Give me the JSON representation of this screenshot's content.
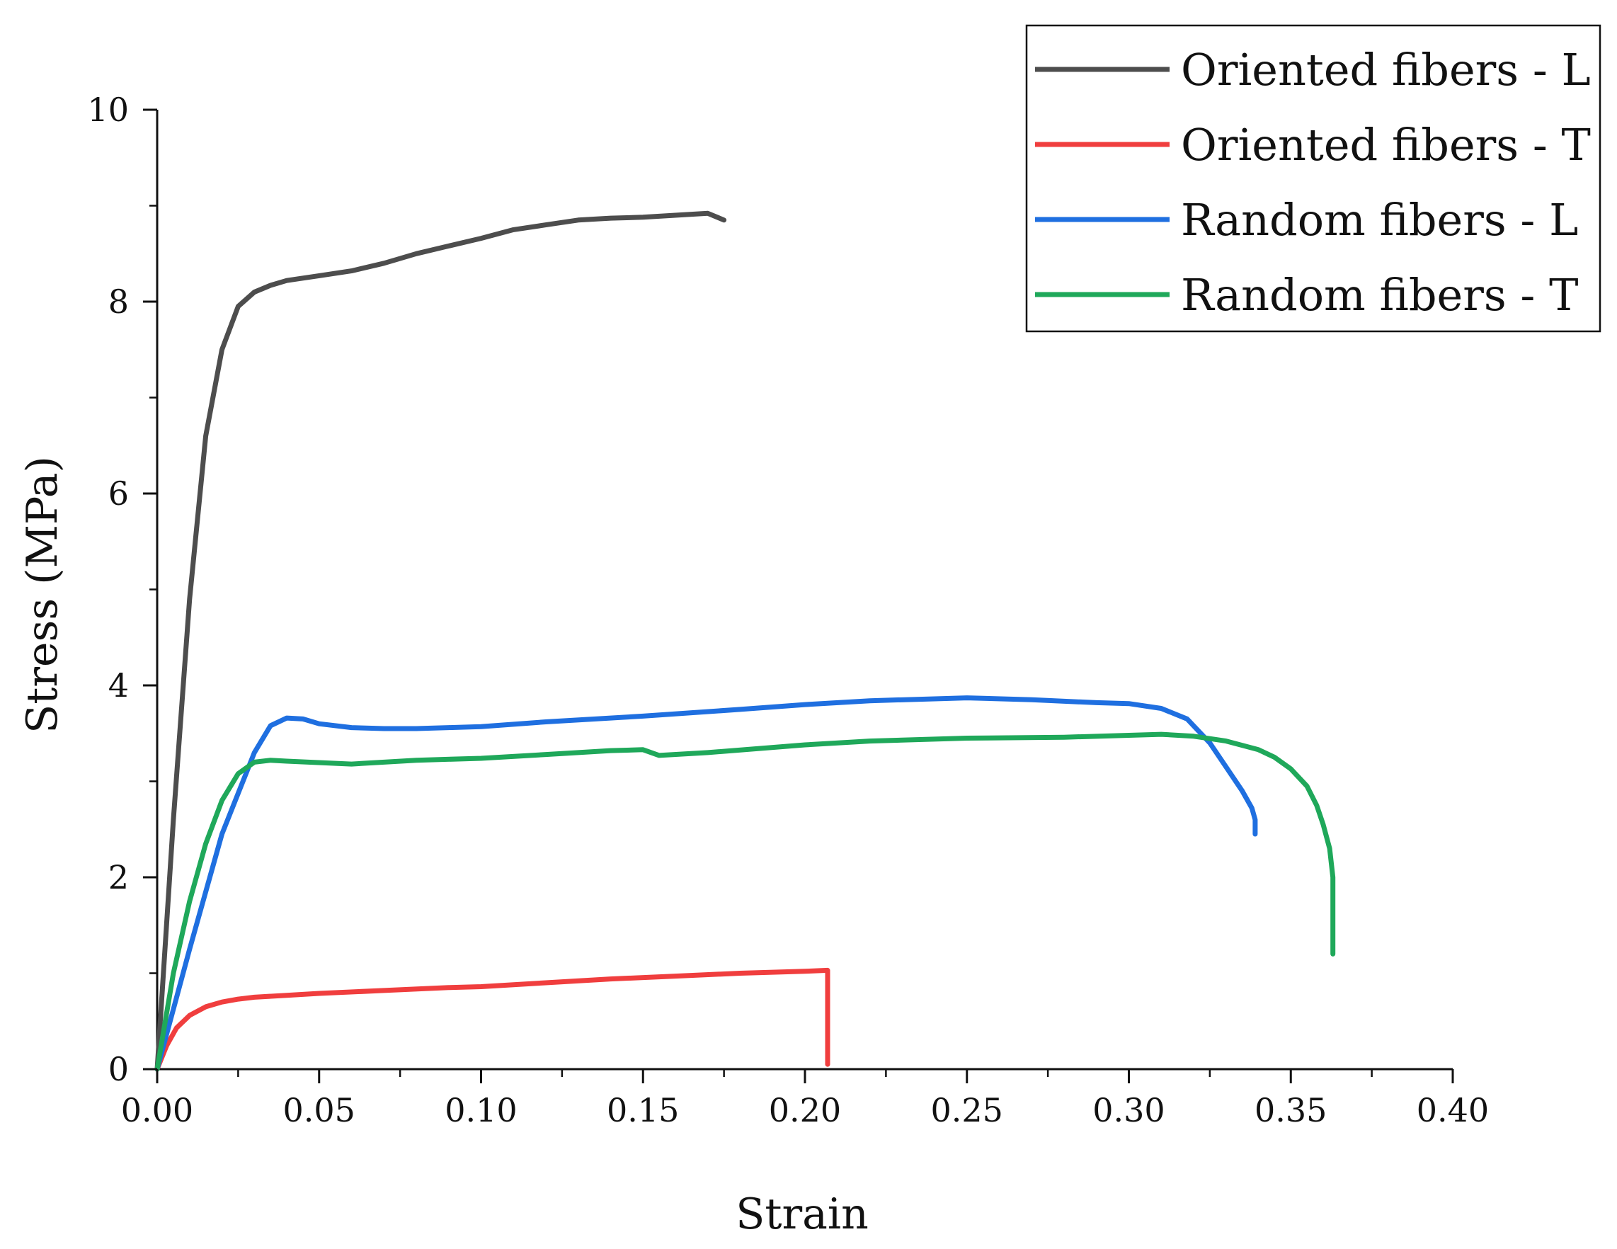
{
  "chart_data": {
    "type": "line",
    "title": "",
    "xlabel": "Strain",
    "ylabel": "Stress (MPa)",
    "xlim": [
      0,
      0.4
    ],
    "ylim": [
      0,
      10
    ],
    "xticks": [
      0.0,
      0.05,
      0.1,
      0.15,
      0.2,
      0.25,
      0.3,
      0.35,
      0.4
    ],
    "xtick_labels": [
      "0.00",
      "0.05",
      "0.10",
      "0.15",
      "0.20",
      "0.25",
      "0.30",
      "0.35",
      "0.40"
    ],
    "yticks": [
      0,
      2,
      4,
      6,
      8,
      10
    ],
    "ytick_labels": [
      "0",
      "2",
      "4",
      "6",
      "8",
      "10"
    ],
    "grid": false,
    "legend_position": "top-right",
    "series": [
      {
        "name": "Oriented fibers - L",
        "color": "#4d4d4d",
        "x": [
          0,
          0.005,
          0.01,
          0.015,
          0.02,
          0.025,
          0.03,
          0.035,
          0.04,
          0.05,
          0.06,
          0.07,
          0.08,
          0.09,
          0.1,
          0.11,
          0.12,
          0.13,
          0.14,
          0.15,
          0.16,
          0.17,
          0.175
        ],
        "y": [
          0,
          2.6,
          4.9,
          6.6,
          7.5,
          7.95,
          8.1,
          8.17,
          8.22,
          8.27,
          8.32,
          8.4,
          8.5,
          8.58,
          8.66,
          8.75,
          8.8,
          8.85,
          8.87,
          8.88,
          8.9,
          8.92,
          8.85
        ]
      },
      {
        "name": "Oriented fibers - T",
        "color": "#f03e3e",
        "x": [
          0,
          0.003,
          0.006,
          0.01,
          0.015,
          0.02,
          0.025,
          0.03,
          0.04,
          0.05,
          0.07,
          0.09,
          0.1,
          0.12,
          0.14,
          0.16,
          0.18,
          0.2,
          0.207,
          0.207,
          0.207
        ],
        "y": [
          0,
          0.25,
          0.43,
          0.56,
          0.65,
          0.7,
          0.73,
          0.75,
          0.77,
          0.79,
          0.82,
          0.85,
          0.86,
          0.9,
          0.94,
          0.97,
          1.0,
          1.02,
          1.03,
          0.5,
          0.05
        ]
      },
      {
        "name": "Random fibers - L",
        "color": "#1f6fe0",
        "x": [
          0,
          0.01,
          0.02,
          0.03,
          0.035,
          0.04,
          0.045,
          0.05,
          0.06,
          0.07,
          0.08,
          0.09,
          0.1,
          0.12,
          0.15,
          0.18,
          0.2,
          0.22,
          0.25,
          0.27,
          0.29,
          0.3,
          0.31,
          0.318,
          0.325,
          0.33,
          0.335,
          0.338,
          0.339,
          0.339
        ],
        "y": [
          0,
          1.25,
          2.45,
          3.3,
          3.58,
          3.66,
          3.65,
          3.6,
          3.56,
          3.55,
          3.55,
          3.56,
          3.57,
          3.62,
          3.68,
          3.75,
          3.8,
          3.84,
          3.87,
          3.85,
          3.82,
          3.81,
          3.76,
          3.65,
          3.4,
          3.15,
          2.9,
          2.72,
          2.6,
          2.45
        ]
      },
      {
        "name": "Random fibers - T",
        "color": "#1fa85a",
        "x": [
          0,
          0.005,
          0.01,
          0.015,
          0.02,
          0.025,
          0.03,
          0.035,
          0.04,
          0.06,
          0.08,
          0.1,
          0.12,
          0.14,
          0.15,
          0.155,
          0.17,
          0.2,
          0.22,
          0.25,
          0.28,
          0.3,
          0.31,
          0.32,
          0.33,
          0.34,
          0.345,
          0.35,
          0.355,
          0.358,
          0.36,
          0.362,
          0.363,
          0.363,
          0.363
        ],
        "y": [
          0,
          1.0,
          1.75,
          2.35,
          2.8,
          3.08,
          3.2,
          3.22,
          3.21,
          3.18,
          3.22,
          3.24,
          3.28,
          3.32,
          3.33,
          3.27,
          3.3,
          3.38,
          3.42,
          3.45,
          3.46,
          3.48,
          3.49,
          3.47,
          3.42,
          3.33,
          3.25,
          3.13,
          2.95,
          2.75,
          2.55,
          2.3,
          2.0,
          1.5,
          1.2
        ]
      }
    ]
  }
}
